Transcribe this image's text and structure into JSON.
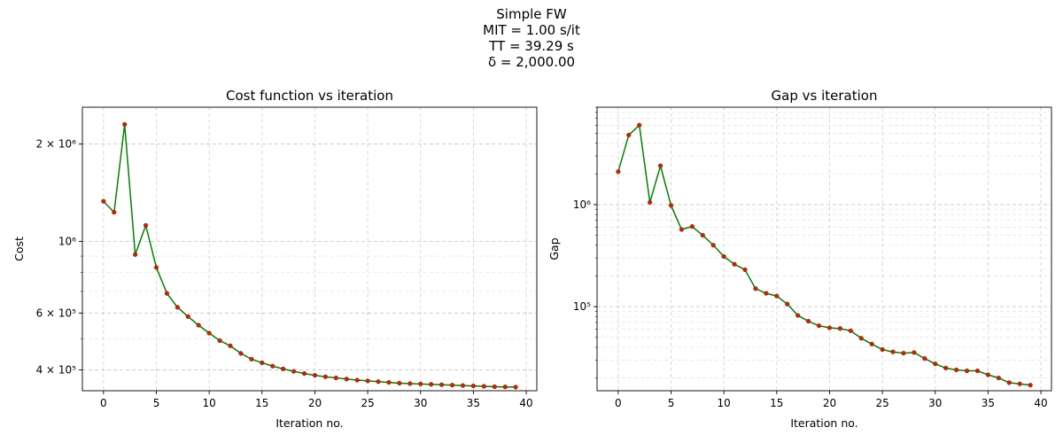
{
  "figure": {
    "suptitle_lines": [
      "Simple FW",
      "MIT = 1.00 s/it",
      "TT = 39.29 s",
      "δ = 2,000.00"
    ]
  },
  "chart_data": [
    {
      "type": "line",
      "title": "Cost function vs iteration",
      "xlabel": "Iteration no.",
      "ylabel": "Cost",
      "yscale": "log",
      "xlim": [
        -2,
        41
      ],
      "ylim": [
        345000,
        2600000
      ],
      "xticks": [
        0,
        5,
        10,
        15,
        20,
        25,
        30,
        35,
        40
      ],
      "yticks": [
        {
          "value": 400000,
          "label": "4 × 10⁵"
        },
        {
          "value": 600000,
          "label": "6 × 10⁵"
        },
        {
          "value": 1000000,
          "label": "10⁶"
        },
        {
          "value": 2000000,
          "label": "2 × 10⁶"
        }
      ],
      "grid": true,
      "line_color": "#008000",
      "marker_color": "#cc2200",
      "x": [
        0,
        1,
        2,
        3,
        4,
        5,
        6,
        7,
        8,
        9,
        10,
        11,
        12,
        13,
        14,
        15,
        16,
        17,
        18,
        19,
        20,
        21,
        22,
        23,
        24,
        25,
        26,
        27,
        28,
        29,
        30,
        31,
        32,
        33,
        34,
        35,
        36,
        37,
        38,
        39
      ],
      "values": [
        1330000,
        1230000,
        2300000,
        910000,
        1120000,
        830000,
        690000,
        625000,
        585000,
        550000,
        520000,
        493000,
        475000,
        450000,
        432000,
        421000,
        411000,
        403000,
        396000,
        390000,
        385000,
        381000,
        378000,
        375000,
        372000,
        370000,
        368000,
        366000,
        364000,
        363000,
        362000,
        361000,
        360000,
        359000,
        358000,
        357000,
        356000,
        355000,
        354500,
        354000
      ]
    },
    {
      "type": "line",
      "title": "Gap vs iteration",
      "xlabel": "Iteration no.",
      "ylabel": "Gap",
      "yscale": "log",
      "xlim": [
        -2,
        41
      ],
      "ylim": [
        15000,
        9000000
      ],
      "xticks": [
        0,
        5,
        10,
        15,
        20,
        25,
        30,
        35,
        40
      ],
      "yticks": [
        {
          "value": 100000,
          "label": "10⁵"
        },
        {
          "value": 1000000,
          "label": "10⁶"
        }
      ],
      "grid": true,
      "line_color": "#008000",
      "marker_color": "#cc2200",
      "x": [
        0,
        1,
        2,
        3,
        4,
        5,
        6,
        7,
        8,
        9,
        10,
        11,
        12,
        13,
        14,
        15,
        16,
        17,
        18,
        19,
        20,
        21,
        22,
        23,
        24,
        25,
        26,
        27,
        28,
        29,
        30,
        31,
        32,
        33,
        34,
        35,
        36,
        37,
        38,
        39
      ],
      "values": [
        2100000,
        4800000,
        6000000,
        1050000,
        2400000,
        980000,
        570000,
        610000,
        500000,
        400000,
        310000,
        260000,
        230000,
        150000,
        135000,
        127000,
        106000,
        82000,
        72000,
        65000,
        62000,
        61000,
        58000,
        49000,
        43000,
        38000,
        36000,
        35000,
        35500,
        31000,
        27500,
        25000,
        24000,
        23500,
        23500,
        21500,
        20000,
        18000,
        17500,
        17000
      ]
    }
  ]
}
